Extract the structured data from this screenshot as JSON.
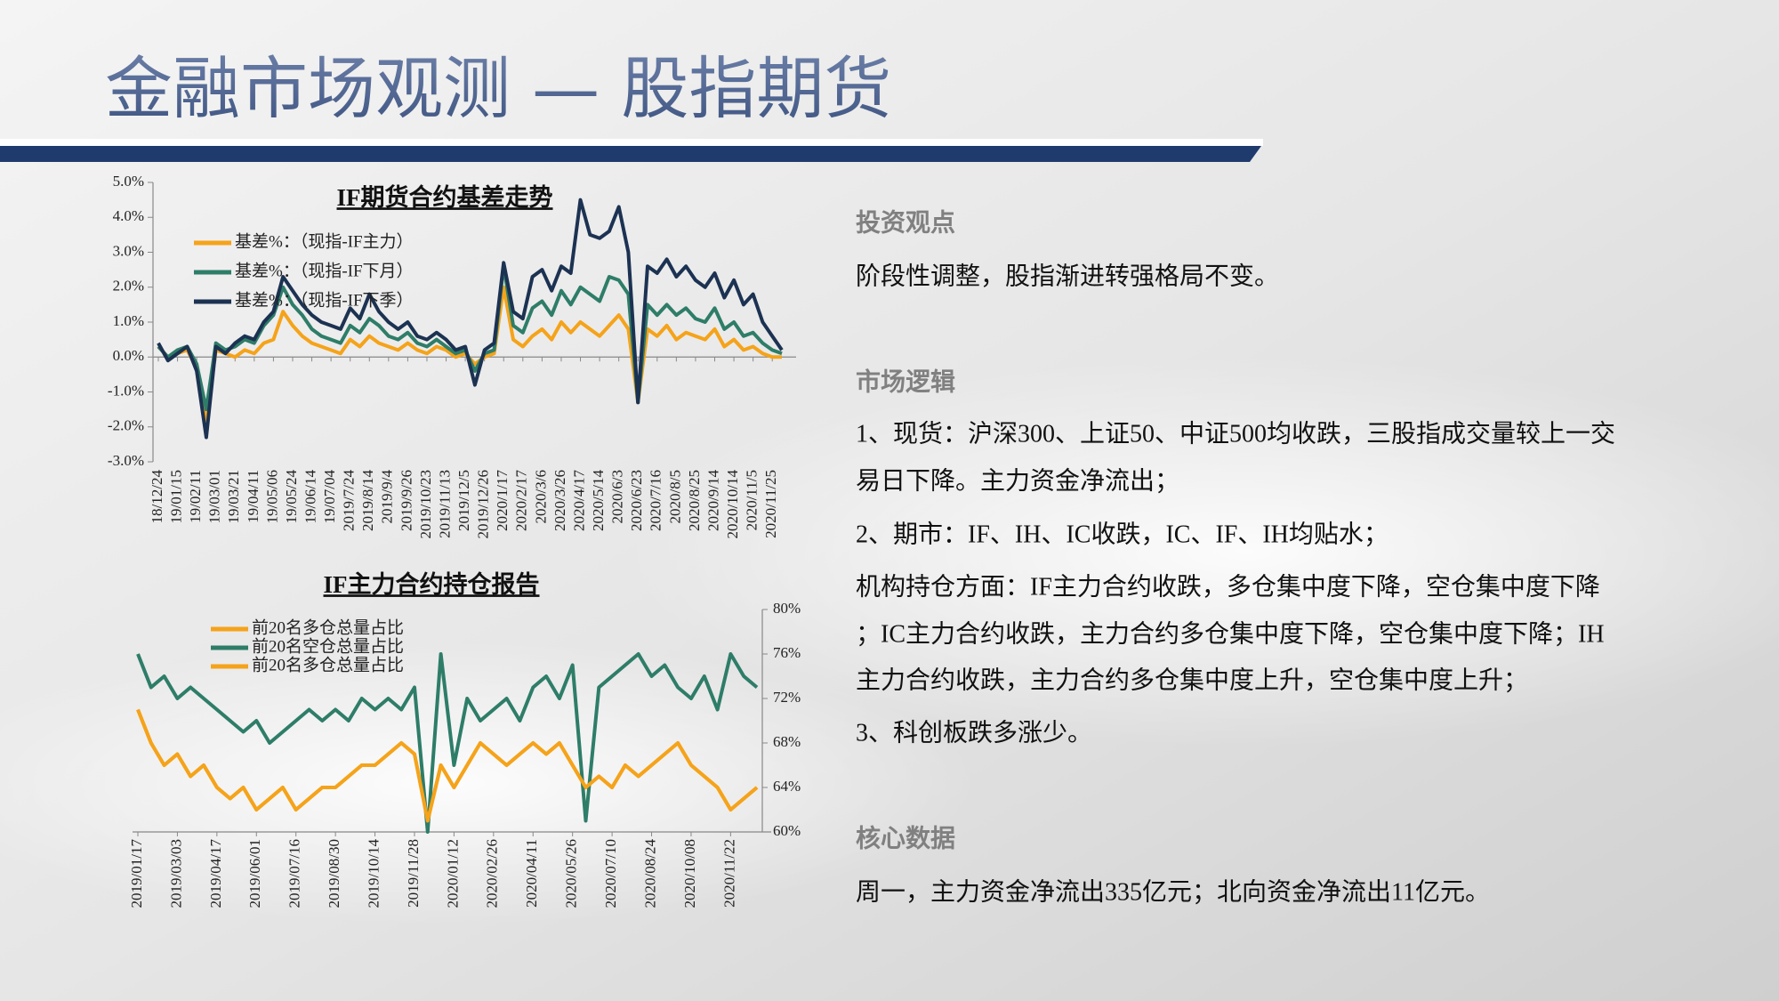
{
  "header": {
    "title": "金融市场观测 — 股指期货"
  },
  "chart_data": [
    {
      "type": "line",
      "title": "IF期货合约基差走势",
      "legend": "top-left",
      "y_axis": "left",
      "categories": [
        "18/12/24",
        null,
        "19/01/15",
        null,
        "19/02/11",
        null,
        "19/03/01",
        null,
        "19/03/21",
        null,
        "19/04/11",
        null,
        "19/05/06",
        null,
        "19/05/24",
        null,
        "19/06/14",
        null,
        "19/07/04",
        null,
        "2019/7/24",
        null,
        "2019/8/14",
        null,
        "2019/9/4",
        null,
        "2019/9/26",
        null,
        "2019/10/23",
        null,
        "2019/11/13",
        null,
        "2019/12/5",
        null,
        "2019/12/26",
        null,
        "2020/1/17",
        null,
        "2020/2/17",
        null,
        "2020/3/6",
        null,
        "2020/3/26",
        null,
        "2020/4/17",
        null,
        "2020/5/14",
        null,
        "2020/6/3",
        null,
        "2020/6/23",
        null,
        "2020/7/16",
        null,
        "2020/8/5",
        null,
        "2020/8/25",
        null,
        "2020/9/14",
        null,
        "2020/10/14",
        null,
        "2020/11/5",
        null,
        "2020/11/25",
        null
      ],
      "series": [
        {
          "name": "基差%：（现指-IF主力）",
          "color": "#f5a31a",
          "values": [
            0.3,
            0.0,
            0.1,
            0.2,
            -0.3,
            -1.8,
            0.2,
            0.1,
            0.0,
            0.2,
            0.1,
            0.4,
            0.5,
            1.3,
            0.9,
            0.6,
            0.4,
            0.3,
            0.2,
            0.1,
            0.5,
            0.3,
            0.6,
            0.4,
            0.3,
            0.2,
            0.4,
            0.2,
            0.1,
            0.3,
            0.2,
            0.0,
            0.1,
            -0.2,
            0.0,
            0.1,
            2.0,
            0.5,
            0.3,
            0.6,
            0.8,
            0.5,
            1.0,
            0.7,
            1.0,
            0.8,
            0.6,
            0.9,
            1.2,
            0.8,
            -1.3,
            0.8,
            0.6,
            0.9,
            0.5,
            0.7,
            0.6,
            0.5,
            0.8,
            0.3,
            0.5,
            0.2,
            0.3,
            0.1,
            0.0,
            0.0
          ]
        },
        {
          "name": "基差%：（现指-IF下月）",
          "color": "#2e7d68",
          "values": [
            0.3,
            0.0,
            0.2,
            0.3,
            -0.2,
            -1.5,
            0.4,
            0.2,
            0.3,
            0.5,
            0.4,
            0.9,
            1.2,
            2.0,
            1.5,
            1.2,
            0.8,
            0.6,
            0.5,
            0.4,
            0.9,
            0.7,
            1.1,
            0.9,
            0.6,
            0.5,
            0.7,
            0.4,
            0.3,
            0.5,
            0.3,
            0.1,
            0.2,
            -0.4,
            0.1,
            0.2,
            2.6,
            0.9,
            0.7,
            1.4,
            1.6,
            1.2,
            1.9,
            1.5,
            2.0,
            1.8,
            1.6,
            2.3,
            2.2,
            1.8,
            -1.3,
            1.5,
            1.2,
            1.5,
            1.2,
            1.4,
            1.1,
            1.0,
            1.4,
            0.8,
            1.0,
            0.6,
            0.7,
            0.4,
            0.2,
            0.1
          ]
        },
        {
          "name": "基差%：（现指-IF下季）",
          "color": "#1c3252",
          "values": [
            0.4,
            -0.1,
            0.1,
            0.3,
            -0.4,
            -2.3,
            0.3,
            0.1,
            0.4,
            0.6,
            0.5,
            1.0,
            1.3,
            2.3,
            1.9,
            1.5,
            1.2,
            1.0,
            0.9,
            0.8,
            1.4,
            1.1,
            1.8,
            1.3,
            1.0,
            0.8,
            1.0,
            0.6,
            0.5,
            0.7,
            0.5,
            0.2,
            0.3,
            -0.8,
            0.2,
            0.4,
            2.7,
            1.3,
            1.1,
            2.3,
            2.5,
            1.9,
            2.6,
            2.4,
            4.5,
            3.5,
            3.4,
            3.6,
            4.3,
            3.0,
            -1.3,
            2.6,
            2.4,
            2.8,
            2.3,
            2.6,
            2.2,
            2.0,
            2.4,
            1.7,
            2.2,
            1.5,
            1.8,
            1.0,
            0.6,
            0.2
          ]
        }
      ],
      "ylim": [
        -3,
        5
      ],
      "yticks": [
        {
          "value": -3,
          "label": "-3.0%"
        },
        {
          "value": -2,
          "label": "-2.0%"
        },
        {
          "value": -1,
          "label": "-1.0%"
        },
        {
          "value": 0,
          "label": "0.0%"
        },
        {
          "value": 1,
          "label": "1.0%"
        },
        {
          "value": 2,
          "label": "2.0%"
        },
        {
          "value": 3,
          "label": "3.0%"
        },
        {
          "value": 4,
          "label": "4.0%"
        },
        {
          "value": 5,
          "label": "5.0%"
        }
      ]
    },
    {
      "type": "line",
      "title": "IF主力合约持仓报告",
      "legend": "top-left",
      "y_axis": "right",
      "categories": [
        "2019/01/17",
        null,
        null,
        "2019/03/03",
        null,
        null,
        "2019/04/17",
        null,
        null,
        "2019/06/01",
        null,
        null,
        "2019/07/16",
        null,
        null,
        "2019/08/30",
        null,
        null,
        "2019/10/14",
        null,
        null,
        "2019/11/28",
        null,
        null,
        "2020/01/12",
        null,
        null,
        "2020/02/26",
        null,
        null,
        "2020/04/11",
        null,
        null,
        "2020/05/26",
        null,
        null,
        "2020/07/10",
        null,
        null,
        "2020/08/24",
        null,
        null,
        "2020/10/08",
        null,
        null,
        "2020/11/22",
        null,
        null
      ],
      "series": [
        {
          "name": "前20名多仓总量占比",
          "color": "#f5a31a",
          "values": [
            71,
            68,
            66,
            67,
            65,
            66,
            64,
            63,
            64,
            62,
            63,
            64,
            62,
            63,
            64,
            64,
            65,
            66,
            66,
            67,
            68,
            67,
            61,
            66,
            64,
            66,
            68,
            67,
            66,
            67,
            68,
            67,
            68,
            66,
            64,
            65,
            64,
            66,
            65,
            66,
            67,
            68,
            66,
            65,
            64,
            62,
            63,
            64
          ]
        },
        {
          "name": "前20名空仓总量占比",
          "color": "#2e7d68",
          "values": [
            76,
            73,
            74,
            72,
            73,
            72,
            71,
            70,
            69,
            70,
            68,
            69,
            70,
            71,
            70,
            71,
            70,
            72,
            71,
            72,
            71,
            73,
            60,
            76,
            66,
            72,
            70,
            71,
            72,
            70,
            73,
            74,
            72,
            75,
            61,
            73,
            74,
            75,
            76,
            74,
            75,
            73,
            72,
            74,
            71,
            76,
            74,
            73
          ]
        },
        {
          "name": "前20名多仓总量占比",
          "color": "#f5a31a",
          "values": [
            71,
            68,
            66,
            67,
            65,
            66,
            64,
            63,
            64,
            62,
            63,
            64,
            62,
            63,
            64,
            64,
            65,
            66,
            66,
            67,
            68,
            67,
            61,
            66,
            64,
            66,
            68,
            67,
            66,
            67,
            68,
            67,
            68,
            66,
            64,
            65,
            64,
            66,
            65,
            66,
            67,
            68,
            66,
            65,
            64,
            62,
            63,
            64
          ]
        }
      ],
      "ylim": [
        60,
        80
      ],
      "yticks": [
        {
          "value": 60,
          "label": "60%"
        },
        {
          "value": 64,
          "label": "64%"
        },
        {
          "value": 68,
          "label": "68%"
        },
        {
          "value": 72,
          "label": "72%"
        },
        {
          "value": 76,
          "label": "76%"
        },
        {
          "value": 80,
          "label": "80%"
        }
      ]
    }
  ],
  "sections": [
    {
      "heading": "投资观点",
      "lines": [
        "阶段性调整，股指渐进转强格局不变。"
      ]
    },
    {
      "heading": "市场逻辑",
      "lines": [
        "1、现货：沪深300、上证50、中证500均收跌，三股指成交量较上一交",
        "易日下降。主力资金净流出；",
        "2、期市：IF、IH、IC收跌，IC、IF、IH均贴水；",
        "机构持仓方面：IF主力合约收跌，多仓集中度下降，空仓集中度下降",
        "；IC主力合约收跌，主力合约多仓集中度下降，空仓集中度下降；IH",
        "主力合约收跌，主力合约多仓集中度上升，空仓集中度上升；",
        "3、科创板跌多涨少。"
      ]
    },
    {
      "heading": "核心数据",
      "lines": [
        "周一，主力资金净流出335亿元；北向资金净流出11亿元。"
      ]
    }
  ]
}
